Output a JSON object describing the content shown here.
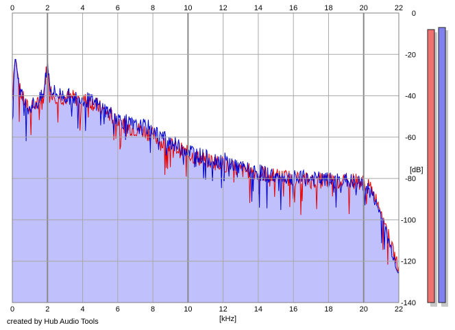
{
  "footer": {
    "credit": "created by Hub Audio Tools"
  },
  "chart_data": {
    "type": "line",
    "xlabel": "[kHz]",
    "ylabel": "[dB]",
    "xlim": [
      0,
      22
    ],
    "ylim": [
      -140,
      0
    ],
    "x_ticks": [
      0,
      2,
      4,
      6,
      8,
      10,
      12,
      14,
      16,
      18,
      20,
      22
    ],
    "y_ticks": [
      0,
      -20,
      -40,
      -60,
      -80,
      -100,
      -120,
      -140
    ],
    "grid": true,
    "colors": {
      "fill": "#c0c0fc",
      "left": "#e60000",
      "right": "#0000d2",
      "meter_left": "#ee7070",
      "meter_right": "#8080ee",
      "grid": "#a8a8a8"
    },
    "series": [
      {
        "channel": "left",
        "color": "#e60000",
        "x": [
          0.0,
          0.1,
          0.2,
          0.3,
          0.4,
          0.6,
          0.8,
          1.0,
          1.2,
          1.5,
          1.8,
          1.9,
          2.0,
          2.1,
          2.2,
          2.5,
          3.0,
          3.5,
          4.0,
          4.5,
          5.0,
          5.5,
          6.0,
          6.5,
          7.0,
          7.5,
          8.0,
          8.5,
          9.0,
          9.5,
          10.0,
          10.5,
          11.0,
          11.5,
          12.0,
          12.5,
          13.0,
          14.0,
          15.0,
          16.0,
          17.0,
          18.0,
          19.0,
          19.5,
          20.0,
          20.5,
          21.0,
          21.3,
          21.6,
          21.9,
          22.0
        ],
        "y": [
          -43,
          -25,
          -22,
          -30,
          -37,
          -41,
          -45,
          -47,
          -45,
          -44,
          -40,
          -30,
          -26,
          -33,
          -38,
          -40,
          -41,
          -41,
          -42,
          -43,
          -46,
          -49,
          -52,
          -55,
          -56,
          -57,
          -59,
          -63,
          -64,
          -66,
          -68,
          -70,
          -71,
          -72,
          -73,
          -75,
          -76,
          -77,
          -79,
          -80,
          -81,
          -81,
          -82,
          -81,
          -82,
          -86,
          -95,
          -104,
          -113,
          -121,
          -124
        ]
      },
      {
        "channel": "right",
        "color": "#0000d2",
        "x": [
          0.0,
          0.1,
          0.2,
          0.3,
          0.4,
          0.6,
          0.8,
          1.0,
          1.2,
          1.5,
          1.8,
          1.9,
          2.0,
          2.1,
          2.2,
          2.5,
          3.0,
          3.5,
          4.0,
          4.5,
          5.0,
          5.5,
          6.0,
          6.5,
          7.0,
          7.5,
          8.0,
          8.5,
          9.0,
          9.5,
          10.0,
          10.5,
          11.0,
          11.5,
          12.0,
          12.5,
          13.0,
          14.0,
          15.0,
          16.0,
          17.0,
          18.0,
          19.0,
          19.5,
          20.0,
          20.5,
          21.0,
          21.3,
          21.6,
          21.9,
          22.0
        ],
        "y": [
          -50,
          -27,
          -22,
          -29,
          -36,
          -42,
          -45,
          -45,
          -44,
          -43,
          -39,
          -30,
          -24,
          -32,
          -37,
          -39,
          -40,
          -41,
          -41,
          -43,
          -45,
          -48,
          -51,
          -53,
          -55,
          -55,
          -56,
          -60,
          -62,
          -65,
          -66,
          -68,
          -70,
          -71,
          -71,
          -73,
          -75,
          -77,
          -79,
          -80,
          -80,
          -81,
          -81,
          -82,
          -83,
          -88,
          -98,
          -107,
          -115,
          -123,
          -124
        ]
      }
    ],
    "meters": [
      {
        "channel": "left",
        "level_db": -8,
        "color": "#ee7070"
      },
      {
        "channel": "right",
        "level_db": -7,
        "color": "#8080ee"
      }
    ]
  }
}
